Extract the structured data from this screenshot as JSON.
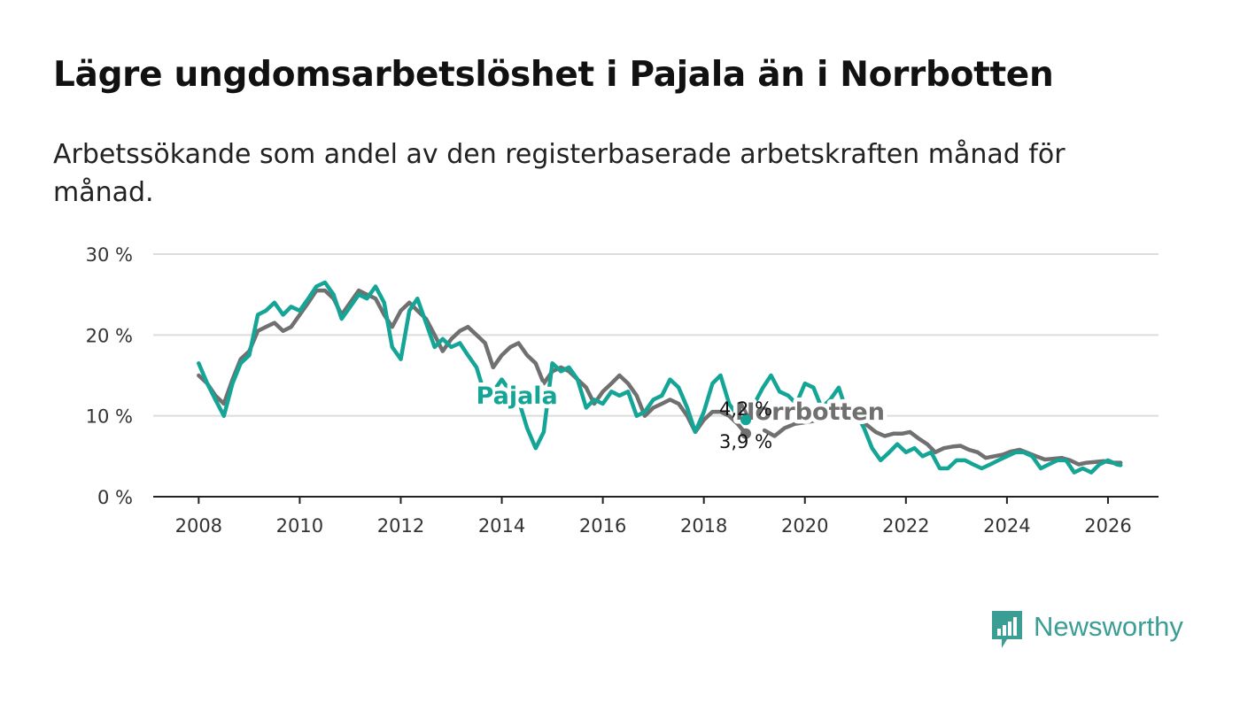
{
  "title": "Lägre ungdomsarbetslöshet i Pajala än i Norrbotten",
  "subtitle": "Arbetssökande som andel av den registerbaserade arbetskraften månad för månad.",
  "brand": {
    "name": "Newsworthy",
    "color": "#3a9e95"
  },
  "chart_data": {
    "type": "line",
    "x_ticks": [
      "2008",
      "2010",
      "2012",
      "2014",
      "2016",
      "2018",
      "2020",
      "2022",
      "2024",
      "2026"
    ],
    "y_ticks": [
      {
        "value": 0,
        "label": "0 %"
      },
      {
        "value": 10,
        "label": "10 %"
      },
      {
        "value": 20,
        "label": "20 %"
      },
      {
        "value": 30,
        "label": "30 %"
      }
    ],
    "xlim": [
      2007.1,
      2027.0
    ],
    "ylim": [
      0,
      30
    ],
    "grid": true,
    "series": [
      {
        "name": "Norrbotten",
        "color": "#707070",
        "label_position": [
          2020.1,
          9.5
        ],
        "end_label": "4,2 %",
        "points": [
          [
            2008.0,
            15.0
          ],
          [
            2008.17,
            14.0
          ],
          [
            2008.33,
            12.5
          ],
          [
            2008.5,
            11.5
          ],
          [
            2008.67,
            14.5
          ],
          [
            2008.83,
            17.0
          ],
          [
            2009.0,
            18.0
          ],
          [
            2009.17,
            20.5
          ],
          [
            2009.33,
            21.0
          ],
          [
            2009.5,
            21.5
          ],
          [
            2009.67,
            20.5
          ],
          [
            2009.83,
            21.0
          ],
          [
            2010.0,
            22.5
          ],
          [
            2010.17,
            24.0
          ],
          [
            2010.33,
            25.5
          ],
          [
            2010.5,
            25.5
          ],
          [
            2010.67,
            24.5
          ],
          [
            2010.83,
            22.5
          ],
          [
            2011.0,
            24.0
          ],
          [
            2011.17,
            25.5
          ],
          [
            2011.33,
            25.0
          ],
          [
            2011.5,
            24.5
          ],
          [
            2011.67,
            22.5
          ],
          [
            2011.83,
            21.0
          ],
          [
            2012.0,
            23.0
          ],
          [
            2012.17,
            24.0
          ],
          [
            2012.33,
            23.0
          ],
          [
            2012.5,
            22.0
          ],
          [
            2012.67,
            20.0
          ],
          [
            2012.83,
            18.0
          ],
          [
            2013.0,
            19.5
          ],
          [
            2013.17,
            20.5
          ],
          [
            2013.33,
            21.0
          ],
          [
            2013.5,
            20.0
          ],
          [
            2013.67,
            19.0
          ],
          [
            2013.83,
            16.0
          ],
          [
            2014.0,
            17.5
          ],
          [
            2014.17,
            18.5
          ],
          [
            2014.33,
            19.0
          ],
          [
            2014.5,
            17.5
          ],
          [
            2014.67,
            16.5
          ],
          [
            2014.83,
            14.0
          ],
          [
            2015.0,
            15.5
          ],
          [
            2015.17,
            16.0
          ],
          [
            2015.33,
            15.5
          ],
          [
            2015.5,
            14.5
          ],
          [
            2015.67,
            13.5
          ],
          [
            2015.83,
            11.5
          ],
          [
            2016.0,
            13.0
          ],
          [
            2016.17,
            14.0
          ],
          [
            2016.33,
            15.0
          ],
          [
            2016.5,
            14.0
          ],
          [
            2016.67,
            12.5
          ],
          [
            2016.83,
            10.0
          ],
          [
            2017.0,
            11.0
          ],
          [
            2017.17,
            11.5
          ],
          [
            2017.33,
            12.0
          ],
          [
            2017.5,
            11.5
          ],
          [
            2017.67,
            10.0
          ],
          [
            2017.83,
            8.0
          ],
          [
            2018.0,
            9.5
          ],
          [
            2018.17,
            10.5
          ],
          [
            2018.33,
            10.5
          ],
          [
            2018.5,
            10.0
          ],
          [
            2018.67,
            9.0
          ],
          [
            2018.83,
            7.8
          ]
        ]
      },
      {
        "name": "Norrbotten",
        "color": "#707070",
        "points": [
          [
            2019.2,
            8.2
          ],
          [
            2019.4,
            7.5
          ],
          [
            2019.6,
            8.5
          ],
          [
            2019.8,
            9.0
          ],
          [
            2020.0,
            9.2
          ],
          [
            2020.3,
            9.5
          ],
          [
            2020.6,
            10.0
          ],
          [
            2020.8,
            10.5
          ],
          [
            2021.0,
            10.0
          ],
          [
            2021.2,
            9.0
          ],
          [
            2021.4,
            8.0
          ],
          [
            2021.58,
            7.5
          ],
          [
            2021.75,
            7.8
          ],
          [
            2021.92,
            7.8
          ],
          [
            2022.08,
            8.0
          ],
          [
            2022.25,
            7.2
          ],
          [
            2022.42,
            6.5
          ],
          [
            2022.58,
            5.5
          ],
          [
            2022.75,
            6.0
          ],
          [
            2022.92,
            6.2
          ],
          [
            2023.08,
            6.3
          ],
          [
            2023.25,
            5.8
          ],
          [
            2023.42,
            5.5
          ],
          [
            2023.58,
            4.8
          ],
          [
            2023.75,
            5.0
          ],
          [
            2023.92,
            5.2
          ],
          [
            2024.08,
            5.6
          ],
          [
            2024.25,
            5.8
          ],
          [
            2024.42,
            5.4
          ],
          [
            2024.58,
            5.0
          ],
          [
            2024.75,
            4.6
          ],
          [
            2024.92,
            4.7
          ],
          [
            2025.08,
            4.8
          ],
          [
            2025.25,
            4.5
          ],
          [
            2025.42,
            4.0
          ],
          [
            2025.58,
            4.2
          ],
          [
            2025.75,
            4.3
          ],
          [
            2025.92,
            4.4
          ],
          [
            2026.08,
            4.2
          ],
          [
            2026.25,
            4.2
          ]
        ]
      },
      {
        "name": "Pajala",
        "color": "#14a597",
        "label_position": [
          2014.3,
          11.5
        ],
        "end_label": "3,9 %",
        "points": [
          [
            2008.0,
            16.5
          ],
          [
            2008.17,
            14.0
          ],
          [
            2008.33,
            12.0
          ],
          [
            2008.5,
            10.0
          ],
          [
            2008.67,
            14.0
          ],
          [
            2008.83,
            16.5
          ],
          [
            2009.0,
            17.5
          ],
          [
            2009.17,
            22.5
          ],
          [
            2009.33,
            23.0
          ],
          [
            2009.5,
            24.0
          ],
          [
            2009.67,
            22.5
          ],
          [
            2009.83,
            23.5
          ],
          [
            2010.0,
            23.0
          ],
          [
            2010.17,
            24.5
          ],
          [
            2010.33,
            26.0
          ],
          [
            2010.5,
            26.5
          ],
          [
            2010.67,
            25.0
          ],
          [
            2010.83,
            22.0
          ],
          [
            2011.0,
            23.5
          ],
          [
            2011.17,
            25.0
          ],
          [
            2011.33,
            24.5
          ],
          [
            2011.5,
            26.0
          ],
          [
            2011.67,
            24.0
          ],
          [
            2011.83,
            18.5
          ],
          [
            2012.0,
            17.0
          ],
          [
            2012.17,
            23.0
          ],
          [
            2012.33,
            24.5
          ],
          [
            2012.5,
            21.5
          ],
          [
            2012.67,
            18.5
          ],
          [
            2012.83,
            19.5
          ],
          [
            2013.0,
            18.5
          ],
          [
            2013.17,
            19.0
          ],
          [
            2013.33,
            17.5
          ],
          [
            2013.5,
            16.0
          ],
          [
            2013.67,
            12.5
          ],
          [
            2013.83,
            13.0
          ],
          [
            2014.0,
            14.5
          ],
          [
            2014.17,
            13.0
          ],
          [
            2014.33,
            12.0
          ],
          [
            2014.5,
            8.5
          ],
          [
            2014.67,
            6.0
          ],
          [
            2014.83,
            8.0
          ],
          [
            2015.0,
            16.5
          ],
          [
            2015.17,
            15.5
          ],
          [
            2015.33,
            16.0
          ],
          [
            2015.5,
            14.5
          ],
          [
            2015.67,
            11.0
          ],
          [
            2015.83,
            12.0
          ],
          [
            2016.0,
            11.5
          ],
          [
            2016.17,
            13.0
          ],
          [
            2016.33,
            12.5
          ],
          [
            2016.5,
            13.0
          ],
          [
            2016.67,
            10.0
          ],
          [
            2016.83,
            10.5
          ],
          [
            2017.0,
            12.0
          ],
          [
            2017.17,
            12.5
          ],
          [
            2017.33,
            14.5
          ],
          [
            2017.5,
            13.5
          ],
          [
            2017.67,
            11.0
          ],
          [
            2017.83,
            8.0
          ],
          [
            2018.0,
            10.5
          ],
          [
            2018.17,
            14.0
          ],
          [
            2018.33,
            15.0
          ],
          [
            2018.5,
            11.5
          ],
          [
            2018.67,
            10.0
          ],
          [
            2018.83,
            9.5
          ]
        ]
      },
      {
        "name": "Pajala",
        "color": "#14a597",
        "points": [
          [
            2019.0,
            11.5
          ],
          [
            2019.17,
            13.5
          ],
          [
            2019.33,
            15.0
          ],
          [
            2019.5,
            13.0
          ],
          [
            2019.67,
            12.5
          ],
          [
            2019.83,
            11.5
          ],
          [
            2020.0,
            14.0
          ],
          [
            2020.17,
            13.5
          ],
          [
            2020.33,
            11.0
          ],
          [
            2020.5,
            12.0
          ],
          [
            2020.67,
            13.5
          ],
          [
            2020.83,
            10.5
          ],
          [
            2021.0,
            10.5
          ],
          [
            2021.17,
            8.5
          ],
          [
            2021.33,
            6.0
          ],
          [
            2021.5,
            4.5
          ],
          [
            2021.67,
            5.5
          ],
          [
            2021.83,
            6.5
          ],
          [
            2022.0,
            5.5
          ],
          [
            2022.17,
            6.0
          ],
          [
            2022.33,
            5.0
          ],
          [
            2022.5,
            5.5
          ],
          [
            2022.67,
            3.5
          ],
          [
            2022.83,
            3.5
          ],
          [
            2023.0,
            4.5
          ],
          [
            2023.17,
            4.5
          ],
          [
            2023.33,
            4.0
          ],
          [
            2023.5,
            3.5
          ],
          [
            2023.67,
            4.0
          ],
          [
            2023.83,
            4.5
          ],
          [
            2024.0,
            5.0
          ],
          [
            2024.17,
            5.5
          ],
          [
            2024.33,
            5.5
          ],
          [
            2024.5,
            5.0
          ],
          [
            2024.67,
            3.5
          ],
          [
            2024.83,
            4.0
          ],
          [
            2025.0,
            4.5
          ],
          [
            2025.17,
            4.5
          ],
          [
            2025.33,
            3.0
          ],
          [
            2025.5,
            3.5
          ],
          [
            2025.67,
            3.0
          ],
          [
            2025.83,
            4.0
          ],
          [
            2026.0,
            4.5
          ],
          [
            2026.17,
            4.0
          ],
          [
            2026.25,
            3.9
          ]
        ]
      }
    ]
  }
}
